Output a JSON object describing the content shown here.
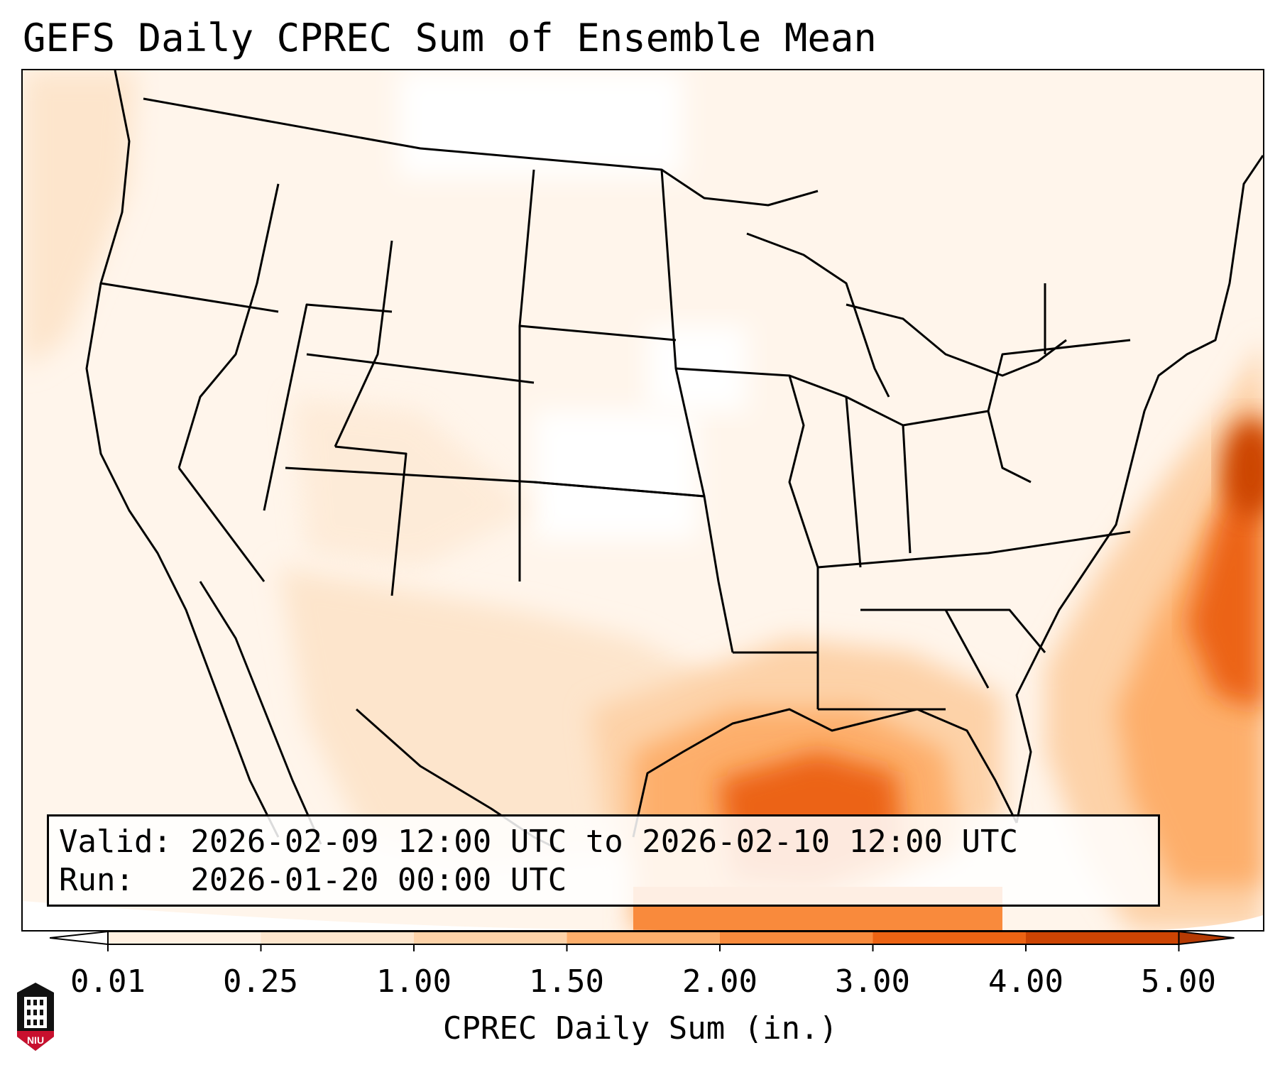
{
  "title": "GEFS Daily CPREC Sum of Ensemble Mean",
  "info": {
    "valid_line": "Valid: 2026-02-09 12:00 UTC to 2026-02-10 12:00 UTC",
    "run_line": "Run:   2026-01-20 00:00 UTC"
  },
  "colorbar": {
    "label": "CPREC Daily Sum (in.)",
    "ticks": [
      "0.01",
      "0.25",
      "1.00",
      "1.50",
      "2.00",
      "3.00",
      "4.00",
      "5.00"
    ],
    "colors": [
      "#fff0e1",
      "#fde5cc",
      "#fdd2a8",
      "#fdae6b",
      "#f98a3c",
      "#ec6313",
      "#cc4403"
    ],
    "under_color": "#ffffff",
    "over_color": "#b53a03"
  },
  "logo": {
    "text": "NIU",
    "color": "#c8102e"
  }
}
